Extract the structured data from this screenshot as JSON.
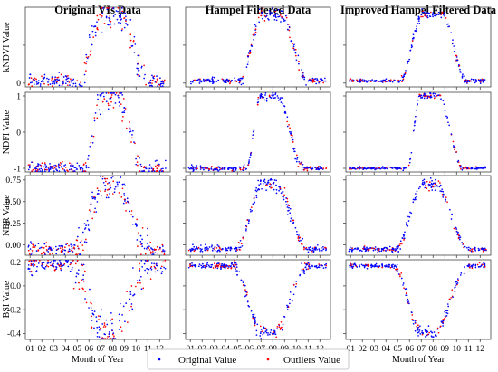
{
  "chart_data": {
    "type": "scatter",
    "x_months": [
      "01",
      "02",
      "03",
      "04",
      "05",
      "06",
      "07",
      "08",
      "09",
      "10",
      "11",
      "12"
    ],
    "xlabel": "Month of Year",
    "columns": [
      "Original VIs Data",
      "Hampel Filtered Data",
      "Improved Hampel Filtered Data"
    ],
    "legend": [
      {
        "name": "Original Value",
        "color": "#0000ff"
      },
      {
        "name": "Outliers Value",
        "color": "#ff0000"
      }
    ],
    "legend_position": "bottom-center",
    "rows": [
      {
        "ylabel": "kNDVI Value",
        "ylim": [
          -0.05,
          1.0
        ],
        "yticks": [
          {
            "v": 0.0,
            "label": "0"
          },
          {
            "v": 0.5,
            "label": ""
          }
        ],
        "baseline": 0.03,
        "peak": 0.9,
        "rise_start": 5.2,
        "rise_end": 7.1,
        "fall_start": 8.7,
        "fall_end": 10.9,
        "noise": [
          0.07,
          0.03,
          0.02
        ]
      },
      {
        "ylabel": "NDFI Value",
        "ylim": [
          -1.1,
          1.1
        ],
        "yticks": [
          {
            "v": -1,
            "label": "-1"
          },
          {
            "v": 0,
            "label": "0"
          },
          {
            "v": 1,
            "label": "1"
          }
        ],
        "baseline": -1.0,
        "peak": 1.0,
        "rise_start": 5.8,
        "rise_end": 6.9,
        "fall_start": 8.4,
        "fall_end": 10.6,
        "noise": [
          0.15,
          0.05,
          0.03
        ]
      },
      {
        "ylabel": "NBR Value",
        "ylim": [
          -0.12,
          0.8
        ],
        "yticks": [
          {
            "v": 0.0,
            "label": "0.00"
          },
          {
            "v": 0.25,
            "label": "0.25"
          },
          {
            "v": 0.5,
            "label": "0.50"
          },
          {
            "v": 0.75,
            "label": "0.75"
          }
        ],
        "baseline": -0.05,
        "peak": 0.7,
        "rise_start": 4.8,
        "rise_end": 7.2,
        "fall_start": 8.2,
        "fall_end": 11.0,
        "noise": [
          0.06,
          0.03,
          0.02
        ]
      },
      {
        "ylabel": "BSI Value",
        "ylim": [
          -0.45,
          0.22
        ],
        "yticks": [
          {
            "v": -0.4,
            "label": "-0.4"
          },
          {
            "v": -0.2,
            "label": "-0.2"
          },
          {
            "v": 0.0,
            "label": "0.0"
          },
          {
            "v": 0.2,
            "label": "0.2"
          }
        ],
        "baseline": 0.17,
        "peak": -0.4,
        "rise_start": 4.6,
        "rise_end": 7.1,
        "fall_start": 8.0,
        "fall_end": 11.0,
        "noise": [
          0.06,
          0.02,
          0.015
        ]
      }
    ]
  }
}
